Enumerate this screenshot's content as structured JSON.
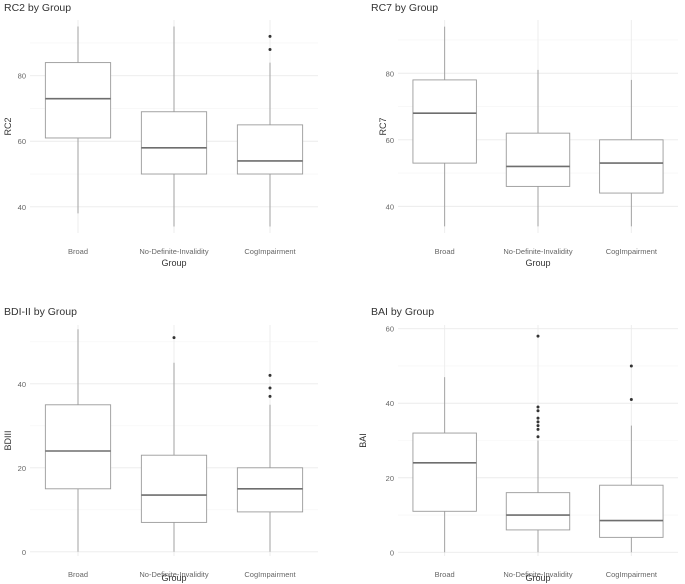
{
  "chart_data": [
    {
      "type": "boxplot",
      "title": "RC2 by Group",
      "xlabel": "Group",
      "ylabel": "RC2",
      "categories": [
        "Broad",
        "No-Definite-Invalidity",
        "CogImpairment"
      ],
      "ylim": [
        32,
        97
      ],
      "yticks": [
        40,
        60,
        80
      ],
      "boxes": [
        {
          "min": 38,
          "q1": 61,
          "median": 73,
          "q3": 84,
          "max": 95,
          "outliers": []
        },
        {
          "min": 34,
          "q1": 50,
          "median": 58,
          "q3": 69,
          "max": 95,
          "outliers": []
        },
        {
          "min": 34,
          "q1": 50,
          "median": 54,
          "q3": 65,
          "max": 84,
          "outliers": [
            88,
            92
          ]
        }
      ]
    },
    {
      "type": "boxplot",
      "title": "RC7 by Group",
      "xlabel": "Group",
      "ylabel": "RC7",
      "categories": [
        "Broad",
        "No-Definite-Invalidity",
        "CogImpairment"
      ],
      "ylim": [
        32,
        96
      ],
      "yticks": [
        40,
        60,
        80
      ],
      "boxes": [
        {
          "min": 34,
          "q1": 53,
          "median": 68,
          "q3": 78,
          "max": 94,
          "outliers": []
        },
        {
          "min": 34,
          "q1": 46,
          "median": 52,
          "q3": 62,
          "max": 81,
          "outliers": []
        },
        {
          "min": 34,
          "q1": 44,
          "median": 53,
          "q3": 60,
          "max": 78,
          "outliers": []
        }
      ]
    },
    {
      "type": "boxplot",
      "title": "BDI-II by Group",
      "xlabel": "Group",
      "ylabel": "BDIII",
      "categories": [
        "Broad",
        "No-Definite-Invalidity",
        "CogImpairment"
      ],
      "ylim": [
        -1,
        54
      ],
      "yticks": [
        0,
        20,
        40
      ],
      "boxes": [
        {
          "min": 0,
          "q1": 15,
          "median": 24,
          "q3": 35,
          "max": 53,
          "outliers": []
        },
        {
          "min": 0,
          "q1": 7,
          "median": 13.5,
          "q3": 23,
          "max": 45,
          "outliers": [
            51
          ]
        },
        {
          "min": 0,
          "q1": 9.5,
          "median": 15,
          "q3": 20,
          "max": 35,
          "outliers": [
            37,
            39,
            42
          ]
        }
      ]
    },
    {
      "type": "boxplot",
      "title": "BAI by Group",
      "xlabel": "Group",
      "ylabel": "BAI",
      "categories": [
        "Broad",
        "No-Definite-Invalidity",
        "CogImpairment"
      ],
      "ylim": [
        -1,
        61
      ],
      "yticks": [
        0,
        20,
        40,
        60
      ],
      "boxes": [
        {
          "min": 0,
          "q1": 11,
          "median": 24,
          "q3": 32,
          "max": 47,
          "outliers": []
        },
        {
          "min": 0,
          "q1": 6,
          "median": 10,
          "q3": 16,
          "max": 30,
          "outliers": [
            31,
            33,
            34,
            35,
            36,
            38,
            39,
            58
          ]
        },
        {
          "min": 0,
          "q1": 4,
          "median": 8.5,
          "q3": 18,
          "max": 34,
          "outliers": [
            41,
            50
          ]
        }
      ]
    }
  ]
}
